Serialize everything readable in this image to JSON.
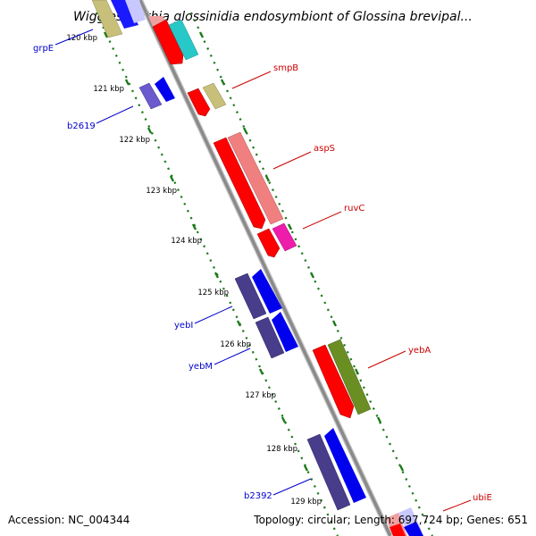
{
  "title": "Wigglesworthia glossinidia endosymbiont of Glossina brevipal...",
  "footer": {
    "accession": "Accession: NC_004344",
    "stats": "Topology: circular; Length: 697,724 bp; Genes: 651"
  },
  "colors": {
    "backbone": "#909090",
    "tick_green": "#1a7a1a",
    "label_red": "#cc0000",
    "label_blue": "#0000cc"
  },
  "kbp_labels": [
    "120 kbp",
    "121 kbp",
    "122 kbp",
    "123 kbp",
    "124 kbp",
    "125 kbp",
    "126 kbp",
    "127 kbp",
    "128 kbp",
    "129 kbp"
  ],
  "gene_labels": [
    "grpE",
    "smpB",
    "b2619",
    "aspS",
    "ruvC",
    "yebI",
    "yebM",
    "yebA",
    "b2392",
    "ubiE"
  ]
}
